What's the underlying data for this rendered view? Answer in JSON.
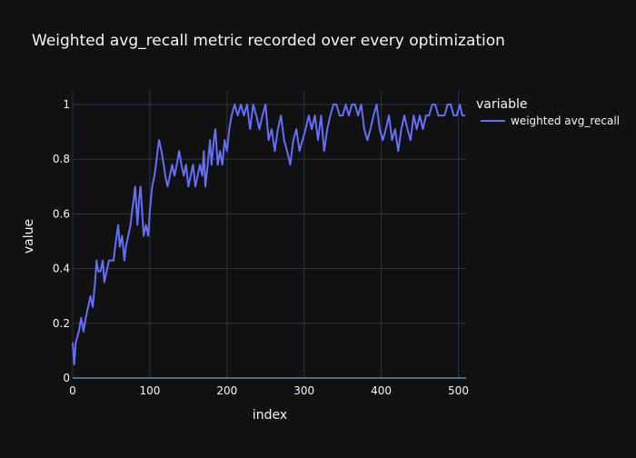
{
  "chart_data": {
    "type": "line",
    "title": "Weighted avg_recall metric recorded over every optimization",
    "xlabel": "index",
    "ylabel": "value",
    "xlim": [
      0,
      510
    ],
    "ylim": [
      0,
      1.05
    ],
    "x_ticks": [
      0,
      100,
      200,
      300,
      400,
      500
    ],
    "y_ticks": [
      0,
      0.2,
      0.4,
      0.6,
      0.8,
      1
    ],
    "grid": true,
    "legend": {
      "title": "variable",
      "placement": "top-right"
    },
    "series": [
      {
        "name": "weighted avg_recall",
        "color": "#636efa",
        "points": [
          [
            0,
            0.13
          ],
          [
            2,
            0.05
          ],
          [
            4,
            0.13
          ],
          [
            8,
            0.17
          ],
          [
            11,
            0.22
          ],
          [
            14,
            0.17
          ],
          [
            17,
            0.22
          ],
          [
            20,
            0.26
          ],
          [
            23,
            0.3
          ],
          [
            26,
            0.26
          ],
          [
            29,
            0.35
          ],
          [
            31,
            0.43
          ],
          [
            33,
            0.39
          ],
          [
            36,
            0.39
          ],
          [
            39,
            0.43
          ],
          [
            41,
            0.35
          ],
          [
            44,
            0.39
          ],
          [
            47,
            0.43
          ],
          [
            50,
            0.43
          ],
          [
            53,
            0.43
          ],
          [
            55,
            0.48
          ],
          [
            57,
            0.52
          ],
          [
            59,
            0.56
          ],
          [
            61,
            0.48
          ],
          [
            64,
            0.52
          ],
          [
            67,
            0.43
          ],
          [
            69,
            0.48
          ],
          [
            72,
            0.52
          ],
          [
            75,
            0.56
          ],
          [
            77,
            0.61
          ],
          [
            79,
            0.65
          ],
          [
            81,
            0.7
          ],
          [
            84,
            0.56
          ],
          [
            86,
            0.65
          ],
          [
            88,
            0.7
          ],
          [
            90,
            0.61
          ],
          [
            92,
            0.52
          ],
          [
            95,
            0.56
          ],
          [
            98,
            0.52
          ],
          [
            100,
            0.61
          ],
          [
            103,
            0.7
          ],
          [
            106,
            0.74
          ],
          [
            108,
            0.78
          ],
          [
            110,
            0.83
          ],
          [
            112,
            0.87
          ],
          [
            115,
            0.83
          ],
          [
            118,
            0.78
          ],
          [
            120,
            0.74
          ],
          [
            123,
            0.7
          ],
          [
            126,
            0.74
          ],
          [
            129,
            0.78
          ],
          [
            132,
            0.74
          ],
          [
            135,
            0.78
          ],
          [
            138,
            0.83
          ],
          [
            141,
            0.78
          ],
          [
            144,
            0.74
          ],
          [
            147,
            0.78
          ],
          [
            150,
            0.7
          ],
          [
            153,
            0.74
          ],
          [
            156,
            0.78
          ],
          [
            159,
            0.7
          ],
          [
            162,
            0.74
          ],
          [
            165,
            0.78
          ],
          [
            168,
            0.74
          ],
          [
            170,
            0.83
          ],
          [
            172,
            0.7
          ],
          [
            175,
            0.78
          ],
          [
            178,
            0.87
          ],
          [
            180,
            0.78
          ],
          [
            183,
            0.87
          ],
          [
            185,
            0.91
          ],
          [
            188,
            0.78
          ],
          [
            191,
            0.83
          ],
          [
            194,
            0.78
          ],
          [
            197,
            0.87
          ],
          [
            200,
            0.83
          ],
          [
            203,
            0.91
          ],
          [
            206,
            0.96
          ],
          [
            210,
            1.0
          ],
          [
            214,
            0.96
          ],
          [
            218,
            1.0
          ],
          [
            222,
            0.96
          ],
          [
            226,
            1.0
          ],
          [
            230,
            0.91
          ],
          [
            234,
            1.0
          ],
          [
            238,
            0.96
          ],
          [
            242,
            0.91
          ],
          [
            246,
            0.96
          ],
          [
            250,
            1.0
          ],
          [
            254,
            0.87
          ],
          [
            258,
            0.91
          ],
          [
            262,
            0.83
          ],
          [
            266,
            0.91
          ],
          [
            270,
            0.96
          ],
          [
            274,
            0.87
          ],
          [
            278,
            0.83
          ],
          [
            282,
            0.78
          ],
          [
            286,
            0.87
          ],
          [
            290,
            0.91
          ],
          [
            294,
            0.83
          ],
          [
            298,
            0.87
          ],
          [
            302,
            0.91
          ],
          [
            306,
            0.96
          ],
          [
            310,
            0.91
          ],
          [
            314,
            0.96
          ],
          [
            318,
            0.87
          ],
          [
            322,
            0.96
          ],
          [
            326,
            0.83
          ],
          [
            330,
            0.91
          ],
          [
            334,
            0.96
          ],
          [
            338,
            1.0
          ],
          [
            342,
            1.0
          ],
          [
            346,
            0.96
          ],
          [
            350,
            0.96
          ],
          [
            354,
            1.0
          ],
          [
            358,
            0.96
          ],
          [
            362,
            1.0
          ],
          [
            366,
            1.0
          ],
          [
            370,
            0.96
          ],
          [
            374,
            1.0
          ],
          [
            378,
            0.91
          ],
          [
            382,
            0.87
          ],
          [
            386,
            0.91
          ],
          [
            390,
            0.96
          ],
          [
            394,
            1.0
          ],
          [
            398,
            0.91
          ],
          [
            402,
            0.87
          ],
          [
            406,
            0.91
          ],
          [
            410,
            0.96
          ],
          [
            414,
            0.87
          ],
          [
            418,
            0.91
          ],
          [
            422,
            0.83
          ],
          [
            426,
            0.91
          ],
          [
            430,
            0.96
          ],
          [
            434,
            0.91
          ],
          [
            438,
            0.87
          ],
          [
            442,
            0.96
          ],
          [
            446,
            0.91
          ],
          [
            450,
            0.96
          ],
          [
            454,
            0.91
          ],
          [
            458,
            0.96
          ],
          [
            462,
            0.96
          ],
          [
            466,
            1.0
          ],
          [
            470,
            1.0
          ],
          [
            474,
            0.96
          ],
          [
            478,
            0.96
          ],
          [
            482,
            0.96
          ],
          [
            486,
            1.0
          ],
          [
            490,
            1.0
          ],
          [
            494,
            0.96
          ],
          [
            498,
            0.96
          ],
          [
            502,
            1.0
          ],
          [
            505,
            0.96
          ],
          [
            509,
            0.96
          ]
        ]
      }
    ]
  },
  "colors": {
    "background": "#111111",
    "grid": "#283442",
    "text": "#f2f5fa",
    "line": "#636efa"
  }
}
